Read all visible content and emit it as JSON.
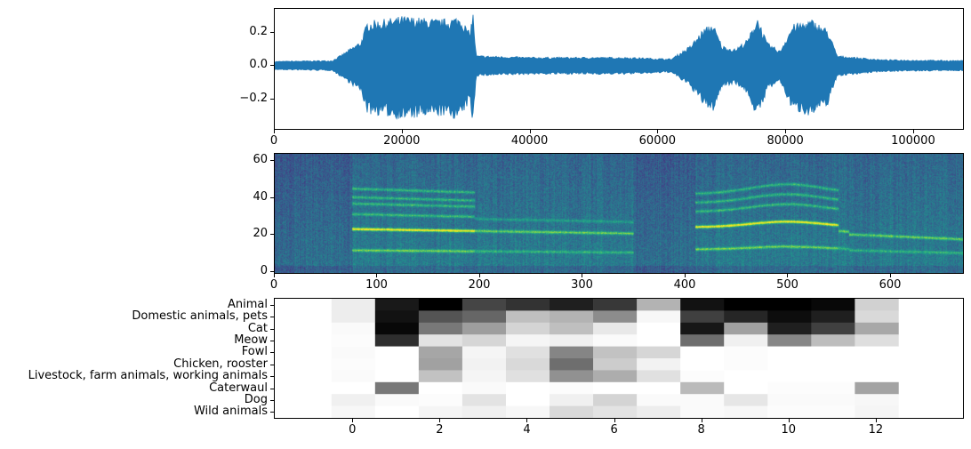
{
  "chart_data": [
    {
      "type": "line",
      "color": "#1f77b4",
      "xlim": [
        0,
        107800
      ],
      "ylim": [
        -0.384,
        0.341
      ],
      "xticks": [
        "0",
        "20000",
        "40000",
        "60000",
        "80000",
        "100000"
      ],
      "xtick_values": [
        0,
        20000,
        40000,
        60000,
        80000,
        100000
      ],
      "yticks": [
        "0.2",
        "0.0",
        "−0.2"
      ],
      "ytick_values": [
        0.2,
        0.0,
        -0.2
      ],
      "envelope": {
        "x": [
          0,
          9000,
          11000,
          13500,
          14500,
          17000,
          20000,
          23000,
          26000,
          29000,
          30500,
          31000,
          31500,
          40000,
          55000,
          62000,
          65000,
          67000,
          68500,
          70000,
          72000,
          74000,
          75500,
          77000,
          79000,
          81000,
          84000,
          86500,
          88000,
          95000,
          107800
        ],
        "amplitude": [
          0.025,
          0.03,
          0.08,
          0.15,
          0.27,
          0.28,
          0.3,
          0.29,
          0.28,
          0.3,
          0.2,
          0.33,
          0.06,
          0.05,
          0.05,
          0.04,
          0.12,
          0.22,
          0.26,
          0.12,
          0.1,
          0.16,
          0.3,
          0.14,
          0.09,
          0.25,
          0.28,
          0.22,
          0.06,
          0.035,
          0.03
        ]
      }
    },
    {
      "type": "heatmap",
      "colormap": "viridis",
      "xlim": [
        0,
        671
      ],
      "ylim": [
        -0.5,
        63.5
      ],
      "xticks": [
        "0",
        "100",
        "200",
        "300",
        "400",
        "500",
        "600"
      ],
      "xtick_values": [
        0,
        100,
        200,
        300,
        400,
        500,
        600
      ],
      "yticks": [
        "0",
        "20",
        "40",
        "60"
      ],
      "ytick_values": [
        0,
        20,
        40,
        60
      ]
    },
    {
      "type": "heatmap",
      "colormap": "gray_r",
      "xlim": [
        -1.8,
        14.0
      ],
      "xticks": [
        "0",
        "2",
        "4",
        "6",
        "8",
        "10",
        "12"
      ],
      "xtick_values": [
        0,
        2,
        4,
        6,
        8,
        10,
        12
      ],
      "categories": [
        "Animal",
        "Domestic animals, pets",
        "Cat",
        "Meow",
        "Fowl",
        "Chicken, rooster",
        "Livestock, farm animals, working animals",
        "Caterwaul",
        "Dog",
        "Wild animals"
      ],
      "values": [
        [
          0.07,
          0.9,
          1.0,
          0.73,
          0.8,
          0.88,
          0.78,
          0.3,
          0.93,
          1.0,
          1.0,
          0.97,
          0.18
        ],
        [
          0.07,
          0.93,
          0.67,
          0.6,
          0.25,
          0.3,
          0.45,
          0.03,
          0.75,
          0.85,
          0.95,
          0.88,
          0.15
        ],
        [
          0.02,
          0.97,
          0.53,
          0.38,
          0.17,
          0.25,
          0.09,
          0.0,
          0.91,
          0.37,
          0.88,
          0.75,
          0.34
        ],
        [
          0.01,
          0.82,
          0.11,
          0.16,
          0.04,
          0.06,
          0.02,
          0.0,
          0.57,
          0.06,
          0.47,
          0.26,
          0.13
        ],
        [
          0.02,
          0.0,
          0.35,
          0.04,
          0.12,
          0.48,
          0.24,
          0.16,
          0.0,
          0.01,
          0.0,
          0.0,
          0.0
        ],
        [
          0.01,
          0.0,
          0.37,
          0.05,
          0.15,
          0.57,
          0.2,
          0.05,
          0.0,
          0.01,
          0.0,
          0.0,
          0.0
        ],
        [
          0.02,
          0.0,
          0.24,
          0.04,
          0.12,
          0.43,
          0.32,
          0.12,
          0.01,
          0.0,
          0.0,
          0.0,
          0.0
        ],
        [
          0.0,
          0.53,
          0.0,
          0.02,
          0.0,
          0.01,
          0.0,
          0.0,
          0.27,
          0.0,
          0.01,
          0.01,
          0.36
        ],
        [
          0.06,
          0.02,
          0.01,
          0.11,
          0.0,
          0.06,
          0.17,
          0.02,
          0.02,
          0.1,
          0.02,
          0.02,
          0.03
        ],
        [
          0.03,
          0.0,
          0.04,
          0.06,
          0.03,
          0.15,
          0.11,
          0.07,
          0.02,
          0.03,
          0.01,
          0.01,
          0.04
        ]
      ]
    }
  ]
}
